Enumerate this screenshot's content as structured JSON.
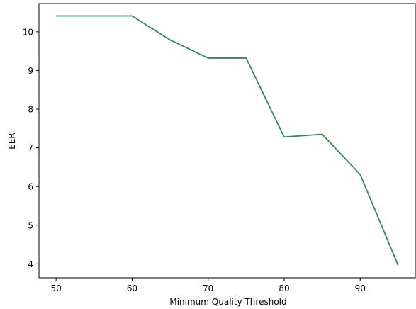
{
  "chart_data": {
    "type": "line",
    "title": "",
    "xlabel": "Minimum Quality Threshold",
    "ylabel": "EER",
    "xlim": [
      47.75,
      97.25
    ],
    "ylim": [
      3.64,
      10.73
    ],
    "x_ticks": [
      50,
      60,
      70,
      80,
      90
    ],
    "y_ticks": [
      4,
      5,
      6,
      7,
      8,
      9,
      10
    ],
    "grid": false,
    "legend": "none",
    "series": [
      {
        "color": "#2e8b57",
        "x": [
          50,
          55,
          60,
          65,
          70,
          75,
          80,
          85,
          90,
          95
        ],
        "y": [
          10.41,
          10.41,
          10.41,
          9.79,
          9.32,
          9.32,
          7.28,
          7.35,
          6.31,
          3.96
        ]
      }
    ]
  }
}
